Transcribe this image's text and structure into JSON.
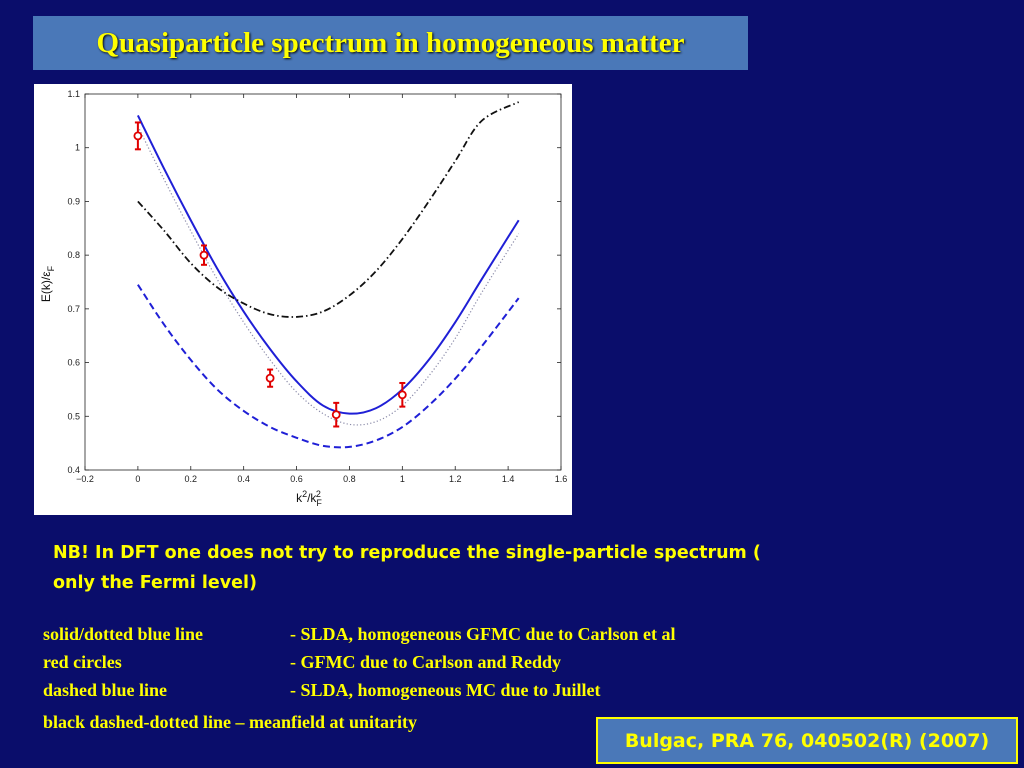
{
  "slide": {
    "title": "Quasiparticle spectrum in homogeneous matter",
    "note_line1": "NB! In DFT one does not try to reproduce the single-particle spectrum (",
    "note_line2": "only the Fermi level)",
    "legend": [
      {
        "term": "solid/dotted blue line",
        "desc": "- SLDA, homogeneous GFMC due to Carlson et al"
      },
      {
        "term": "red circles",
        "desc": "- GFMC due to Carlson and Reddy"
      },
      {
        "term": "dashed blue line",
        "desc": "- SLDA, homogeneous MC due to Juillet"
      }
    ],
    "legend_extra": "black dashed-dotted line – meanfield at unitarity",
    "citation": "Bulgac, PRA  76, 040502(R) (2007)",
    "colors": {
      "background": "#0a0d6b",
      "title_box": "#4a78b8",
      "text": "#ffff00"
    }
  },
  "chart_data": {
    "type": "line",
    "xlabel_main": "k",
    "xlabel_sup": "2",
    "xlabel_mid": "/k",
    "xlabel_sub": "F",
    "xlabel_sup2": "2",
    "ylabel_main": "E(k)/ε",
    "ylabel_sub": "F",
    "xlim": [
      -0.2,
      1.6
    ],
    "ylim": [
      0.4,
      1.1
    ],
    "xticks": [
      "−0.2",
      "0",
      "0.2",
      "0.4",
      "0.6",
      "0.8",
      "1",
      "1.2",
      "1.4",
      "1.6"
    ],
    "yticks": [
      "0.4",
      "0.5",
      "0.6",
      "0.7",
      "0.8",
      "0.9",
      "1",
      "1.1"
    ],
    "series": [
      {
        "style": "solid",
        "color": "#1f1fd6",
        "x": [
          0,
          0.1,
          0.2,
          0.3,
          0.4,
          0.5,
          0.6,
          0.7,
          0.8,
          0.9,
          1.0,
          1.1,
          1.2,
          1.3,
          1.44
        ],
        "y": [
          1.06,
          0.96,
          0.865,
          0.775,
          0.695,
          0.625,
          0.565,
          0.52,
          0.505,
          0.515,
          0.55,
          0.605,
          0.675,
          0.755,
          0.865
        ]
      },
      {
        "style": "dotted",
        "color": "#8a8aa8",
        "x": [
          0,
          0.1,
          0.2,
          0.3,
          0.4,
          0.5,
          0.6,
          0.7,
          0.8,
          0.9,
          1.0,
          1.1,
          1.2,
          1.3,
          1.44
        ],
        "y": [
          1.04,
          0.94,
          0.845,
          0.755,
          0.675,
          0.605,
          0.545,
          0.505,
          0.485,
          0.49,
          0.52,
          0.575,
          0.645,
          0.73,
          0.84
        ]
      },
      {
        "style": "dashed",
        "color": "#1f1fd6",
        "x": [
          0,
          0.1,
          0.2,
          0.3,
          0.4,
          0.5,
          0.6,
          0.7,
          0.8,
          0.9,
          1.0,
          1.1,
          1.2,
          1.3,
          1.44
        ],
        "y": [
          0.745,
          0.67,
          0.605,
          0.55,
          0.51,
          0.48,
          0.46,
          0.445,
          0.443,
          0.455,
          0.48,
          0.52,
          0.57,
          0.63,
          0.72
        ]
      },
      {
        "style": "dashdot",
        "color": "#111111",
        "x": [
          0,
          0.1,
          0.2,
          0.3,
          0.4,
          0.5,
          0.6,
          0.7,
          0.8,
          0.9,
          1.0,
          1.1,
          1.2,
          1.3,
          1.44
        ],
        "y": [
          0.9,
          0.845,
          0.785,
          0.74,
          0.71,
          0.69,
          0.685,
          0.695,
          0.725,
          0.77,
          0.83,
          0.9,
          0.975,
          1.05,
          1.085
        ]
      }
    ],
    "points": {
      "color": "#e00000",
      "x": [
        0,
        0.25,
        0.5,
        0.75,
        1.0
      ],
      "y": [
        1.022,
        0.8,
        0.571,
        0.503,
        0.54
      ],
      "err": [
        0.025,
        0.018,
        0.016,
        0.022,
        0.022
      ]
    }
  }
}
